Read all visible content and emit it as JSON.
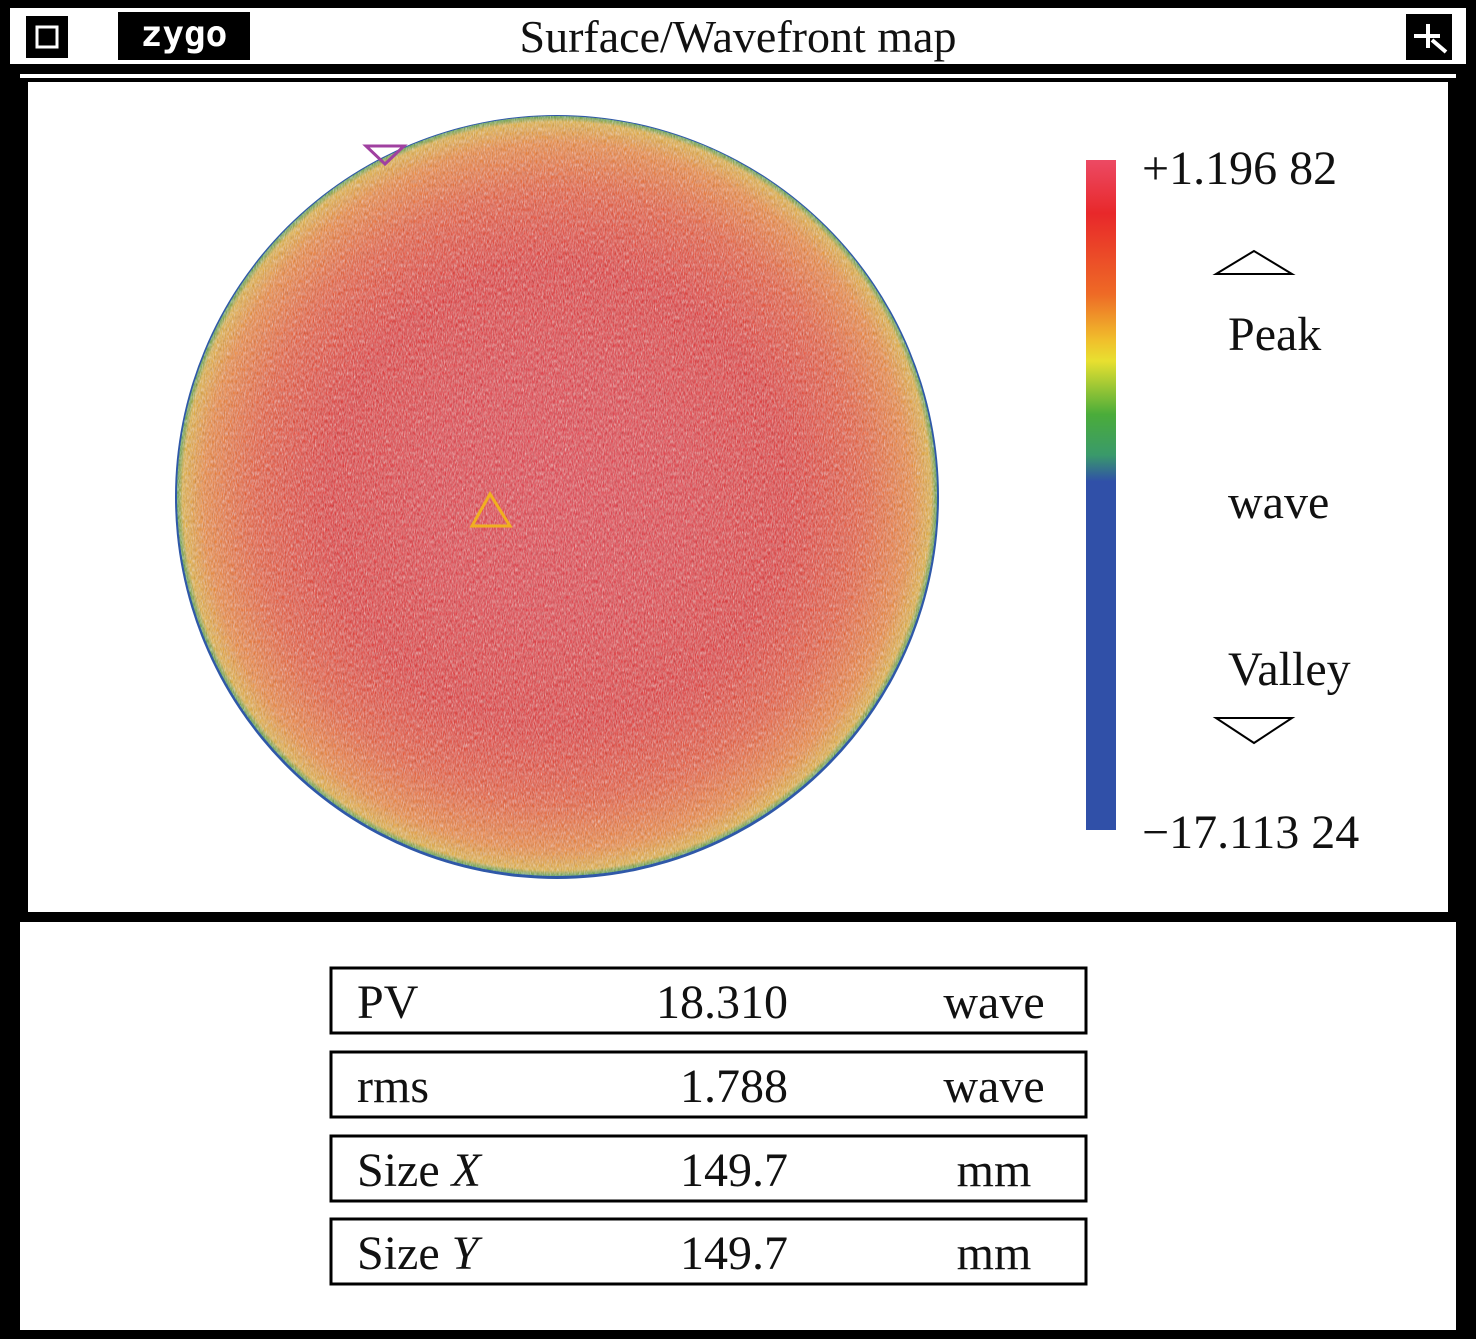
{
  "header": {
    "logo": "zygo",
    "title": "Surface/Wavefront map"
  },
  "colorbar": {
    "max": "+1.196 82",
    "min": "−17.113 24",
    "peak_label": "Peak",
    "unit_label": "wave",
    "valley_label": "Valley"
  },
  "table": {
    "rows": [
      {
        "name": "PV",
        "value": "18.310",
        "unit": "wave"
      },
      {
        "name": "rms",
        "value": "1.788",
        "unit": "wave"
      },
      {
        "name": "Size",
        "axis": "X",
        "value": "149.7",
        "unit": "mm"
      },
      {
        "name": "Size",
        "axis": "Y",
        "value": "149.7",
        "unit": "mm"
      }
    ]
  }
}
